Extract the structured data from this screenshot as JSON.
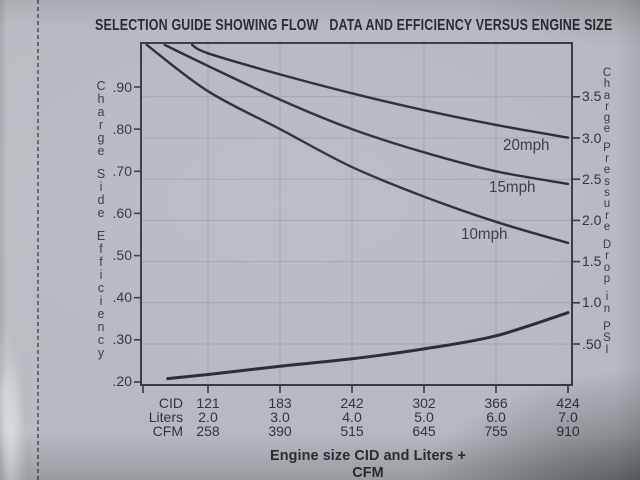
{
  "title": {
    "part1": "SELECTION GUIDE SHOWING FLOW",
    "part2": "DATA AND EFFICIENCY VERSUS ENGINE SIZE"
  },
  "colors": {
    "card_background": "#b4bac0",
    "curve": "#27202e",
    "axis": "#3c3742",
    "grid": "#9da4ac",
    "text": "#34323a"
  },
  "chart_data": {
    "type": "line",
    "title": "SELECTION GUIDE SHOWING FLOW DATA AND EFFICIENCY VERSUS ENGINE SIZE",
    "x_axis": {
      "label": "Engine size CID and Liters + CFM",
      "tick_liters": [
        2.0,
        3.0,
        4.0,
        5.0,
        6.0,
        7.0
      ],
      "rows": [
        {
          "name": "CID",
          "values": [
            "121",
            "183",
            "242",
            "302",
            "366",
            "424"
          ]
        },
        {
          "name": "Liters",
          "values": [
            "2.0",
            "3.0",
            "4.0",
            "5.0",
            "6.0",
            "7.0"
          ]
        },
        {
          "name": "CFM",
          "values": [
            "258",
            "390",
            "515",
            "645",
            "755",
            "910"
          ]
        }
      ]
    },
    "y_left_axis": {
      "label": "Charge Side Efficiency",
      "tick_labels": [
        ".90",
        ".80",
        ".70",
        ".60",
        ".50",
        ".40",
        ".30",
        ".20"
      ],
      "tick_values": [
        0.9,
        0.8,
        0.7,
        0.6,
        0.5,
        0.4,
        0.3,
        0.2
      ],
      "range": [
        0.2,
        1.0
      ]
    },
    "y_right_axis": {
      "label": "Charge Pressure Drop in PSI",
      "tick_labels": [
        "3.5",
        "3.0",
        "2.5",
        "2.0",
        "1.5",
        "1.0",
        ".50"
      ],
      "tick_values": [
        3.5,
        3.0,
        2.5,
        2.0,
        1.5,
        1.0,
        0.5
      ],
      "range": [
        0,
        4.15
      ]
    },
    "grid": {
      "horizontal_at": "right_axis_ticks",
      "vertical_at": "x_ticks"
    },
    "series": [
      {
        "name": "efficiency-20mph",
        "label": "20mph",
        "axis": "left",
        "x_liters": [
          1.78,
          2,
          3,
          4,
          5,
          6,
          7
        ],
        "values": [
          1.0,
          0.98,
          0.93,
          0.885,
          0.845,
          0.81,
          0.78
        ]
      },
      {
        "name": "efficiency-15mph",
        "label": "15mph",
        "axis": "left",
        "x_liters": [
          1.4,
          2,
          3,
          4,
          5,
          6,
          7
        ],
        "values": [
          1.0,
          0.95,
          0.87,
          0.8,
          0.745,
          0.7,
          0.67
        ]
      },
      {
        "name": "efficiency-10mph",
        "label": "10mph",
        "axis": "left",
        "x_liters": [
          1.15,
          2,
          3,
          4,
          5,
          6,
          7
        ],
        "values": [
          1.0,
          0.89,
          0.8,
          0.71,
          0.64,
          0.58,
          0.53
        ]
      },
      {
        "name": "charge-pressure-drop",
        "label": "",
        "axis": "right",
        "x_liters": [
          1.44,
          2,
          3,
          4,
          5,
          6,
          7
        ],
        "values": [
          0.08,
          0.13,
          0.23,
          0.32,
          0.44,
          0.6,
          0.88
        ]
      }
    ]
  }
}
